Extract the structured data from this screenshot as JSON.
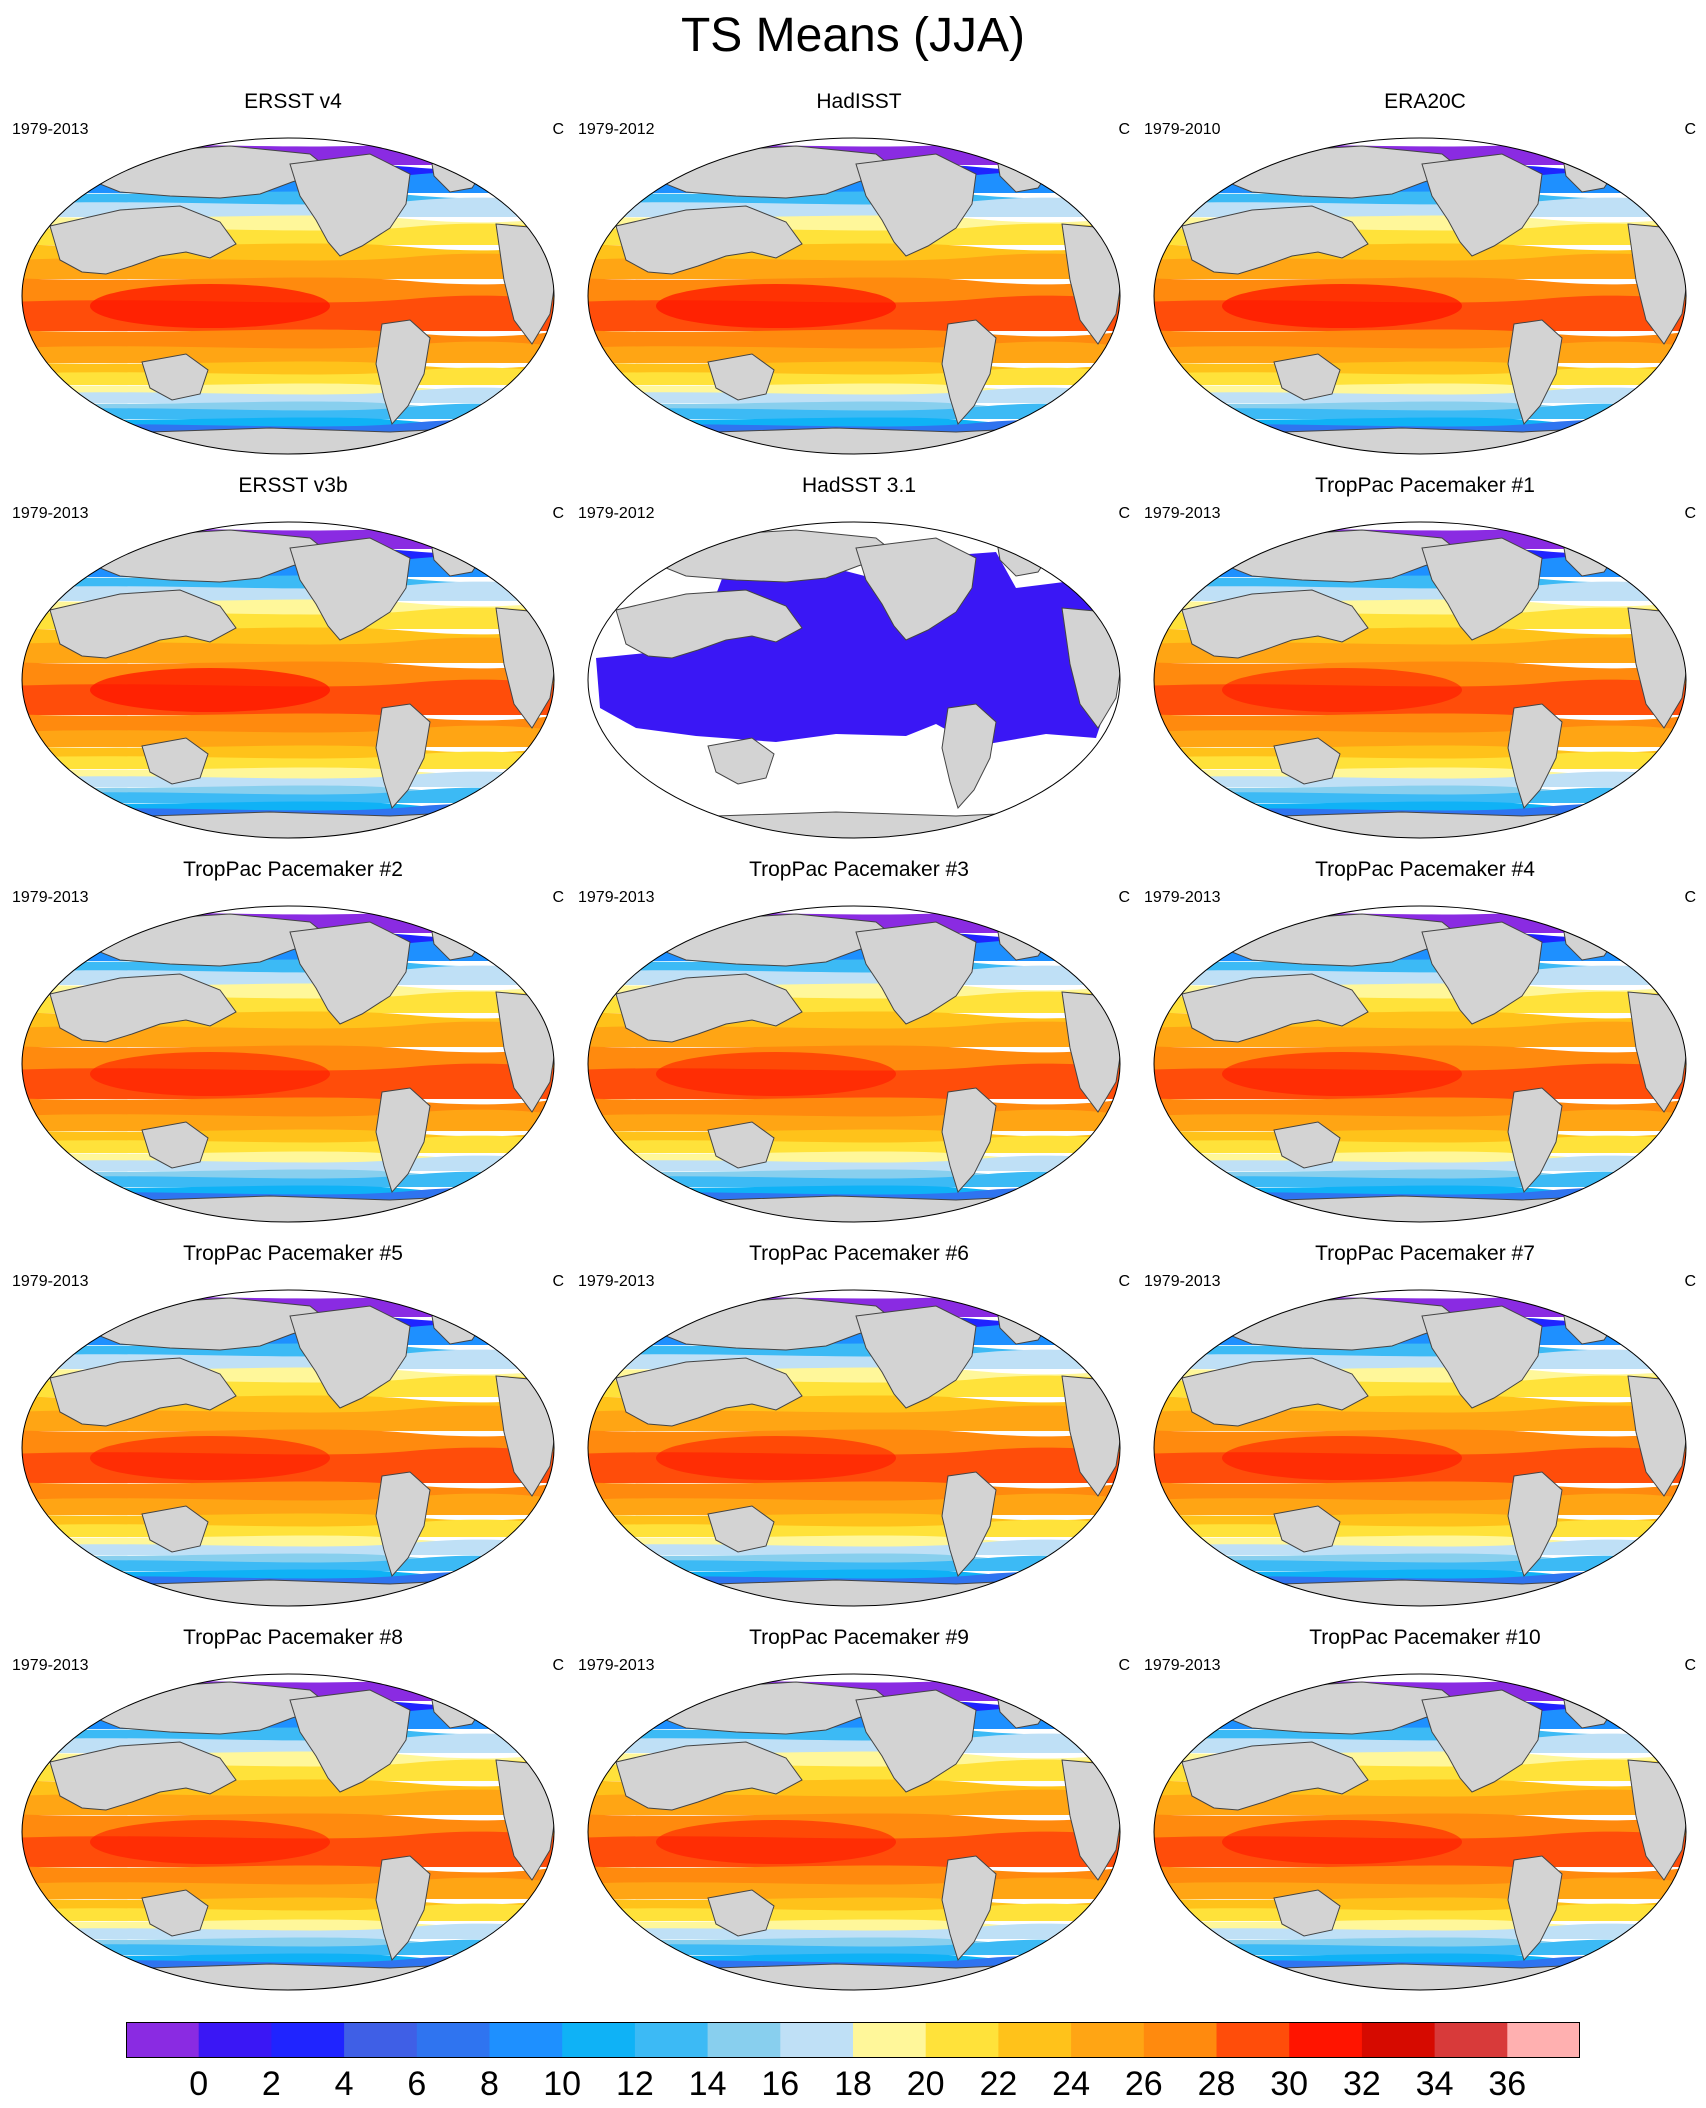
{
  "figure": {
    "title": "TS Means (JJA)"
  },
  "panels": [
    {
      "title": "ERSST v4",
      "period": "1979-2013",
      "units": "C",
      "style": "obs"
    },
    {
      "title": "HadISST",
      "period": "1979-2012",
      "units": "C",
      "style": "obs"
    },
    {
      "title": "ERA20C",
      "period": "1979-2010",
      "units": "C",
      "style": "obs"
    },
    {
      "title": "ERSST v3b",
      "period": "1979-2013",
      "units": "C",
      "style": "obs"
    },
    {
      "title": "HadSST 3.1",
      "period": "1979-2012",
      "units": "C",
      "style": "sparse"
    },
    {
      "title": "TropPac Pacemaker #1",
      "period": "1979-2013",
      "units": "C",
      "style": "model"
    },
    {
      "title": "TropPac Pacemaker #2",
      "period": "1979-2013",
      "units": "C",
      "style": "model"
    },
    {
      "title": "TropPac Pacemaker #3",
      "period": "1979-2013",
      "units": "C",
      "style": "model"
    },
    {
      "title": "TropPac Pacemaker #4",
      "period": "1979-2013",
      "units": "C",
      "style": "model"
    },
    {
      "title": "TropPac Pacemaker #5",
      "period": "1979-2013",
      "units": "C",
      "style": "model"
    },
    {
      "title": "TropPac Pacemaker #6",
      "period": "1979-2013",
      "units": "C",
      "style": "model"
    },
    {
      "title": "TropPac Pacemaker #7",
      "period": "1979-2013",
      "units": "C",
      "style": "model"
    },
    {
      "title": "TropPac Pacemaker #8",
      "period": "1979-2013",
      "units": "C",
      "style": "model"
    },
    {
      "title": "TropPac Pacemaker #9",
      "period": "1979-2013",
      "units": "C",
      "style": "model"
    },
    {
      "title": "TropPac Pacemaker #10",
      "period": "1979-2013",
      "units": "C",
      "style": "model"
    }
  ],
  "colorbar": {
    "labels": [
      "0",
      "2",
      "4",
      "6",
      "8",
      "10",
      "12",
      "14",
      "16",
      "18",
      "20",
      "22",
      "24",
      "26",
      "28",
      "30",
      "32",
      "34",
      "36"
    ],
    "colors": [
      "#8a2be2",
      "#3a17f5",
      "#1f24ff",
      "#3f5fe6",
      "#2f74f0",
      "#1e90ff",
      "#0fb2f6",
      "#3cbaf5",
      "#88cfee",
      "#bfe0f6",
      "#fff79a",
      "#ffe23a",
      "#ffc21a",
      "#ffa514",
      "#ff8a0e",
      "#ff4d0a",
      "#ff1400",
      "#d60a00",
      "#d83a3a",
      "#ffb0b0"
    ]
  },
  "colors": {
    "land": "#d3d3d3",
    "coast": "#444444",
    "missing": "#ffffff"
  }
}
